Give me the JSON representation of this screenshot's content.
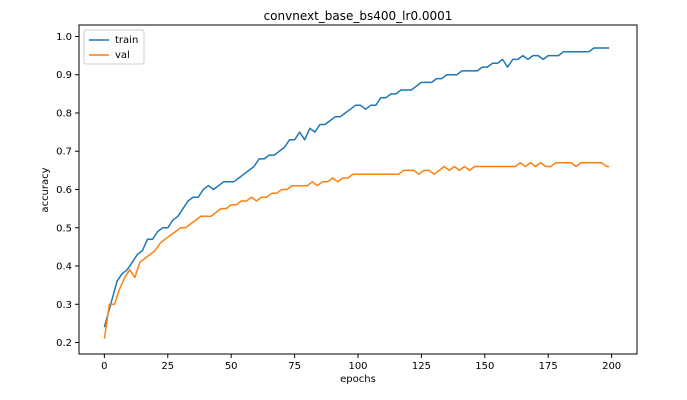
{
  "chart_data": {
    "type": "line",
    "title": "convnext_base_bs400_lr0.0001",
    "xlabel": "epochs",
    "ylabel": "accuracy",
    "xlim": [
      -10,
      210
    ],
    "ylim": [
      0.17,
      1.03
    ],
    "xticks": [
      0,
      25,
      50,
      75,
      100,
      125,
      150,
      175,
      200
    ],
    "yticks": [
      0.2,
      0.3,
      0.4,
      0.5,
      0.6,
      0.7,
      0.8,
      0.9,
      1.0
    ],
    "xtick_labels": [
      "0",
      "25",
      "50",
      "75",
      "100",
      "125",
      "150",
      "175",
      "200"
    ],
    "ytick_labels": [
      "0.2",
      "0.3",
      "0.4",
      "0.5",
      "0.6",
      "0.7",
      "0.8",
      "0.9",
      "1.0"
    ],
    "grid": false,
    "legend_position": "upper-left",
    "series": [
      {
        "name": "train",
        "color": "#1f77b4",
        "x": [
          0,
          5,
          7,
          9,
          11,
          13,
          15,
          17,
          19,
          21,
          23,
          25,
          27,
          29,
          31,
          33,
          35,
          37,
          39,
          41,
          43,
          45,
          47,
          49,
          51,
          53,
          55,
          57,
          59,
          61,
          63,
          65,
          67,
          69,
          71,
          73,
          75,
          77,
          79,
          81,
          83,
          85,
          87,
          89,
          91,
          93,
          95,
          97,
          99,
          101,
          103,
          105,
          107,
          109,
          111,
          113,
          115,
          117,
          119,
          121,
          123,
          125,
          127,
          129,
          131,
          133,
          135,
          137,
          139,
          141,
          143,
          145,
          147,
          149,
          151,
          153,
          155,
          157,
          159,
          161,
          163,
          165,
          167,
          169,
          171,
          173,
          175,
          177,
          179,
          181,
          183,
          185,
          187,
          189,
          191,
          193,
          195,
          197,
          199
        ],
        "values": [
          0.24,
          0.36,
          0.38,
          0.39,
          0.41,
          0.43,
          0.44,
          0.47,
          0.47,
          0.49,
          0.5,
          0.5,
          0.52,
          0.53,
          0.55,
          0.57,
          0.58,
          0.58,
          0.6,
          0.61,
          0.6,
          0.61,
          0.62,
          0.62,
          0.62,
          0.63,
          0.64,
          0.65,
          0.66,
          0.68,
          0.68,
          0.69,
          0.69,
          0.7,
          0.71,
          0.73,
          0.73,
          0.75,
          0.73,
          0.76,
          0.75,
          0.77,
          0.77,
          0.78,
          0.79,
          0.79,
          0.8,
          0.81,
          0.82,
          0.82,
          0.81,
          0.82,
          0.82,
          0.84,
          0.84,
          0.85,
          0.85,
          0.86,
          0.86,
          0.86,
          0.87,
          0.88,
          0.88,
          0.88,
          0.89,
          0.89,
          0.9,
          0.9,
          0.9,
          0.91,
          0.91,
          0.91,
          0.91,
          0.92,
          0.92,
          0.93,
          0.93,
          0.94,
          0.92,
          0.94,
          0.94,
          0.95,
          0.94,
          0.95,
          0.95,
          0.94,
          0.95,
          0.95,
          0.95,
          0.96,
          0.96,
          0.96,
          0.96,
          0.96,
          0.96,
          0.97,
          0.97,
          0.97,
          0.97
        ]
      },
      {
        "name": "val",
        "color": "#ff7f0e",
        "x": [
          0,
          2,
          4,
          6,
          8,
          10,
          12,
          14,
          16,
          18,
          20,
          22,
          24,
          26,
          28,
          30,
          32,
          34,
          36,
          38,
          40,
          42,
          44,
          46,
          48,
          50,
          52,
          54,
          56,
          58,
          60,
          62,
          64,
          66,
          68,
          70,
          72,
          74,
          76,
          78,
          80,
          82,
          84,
          86,
          88,
          90,
          92,
          94,
          96,
          98,
          100,
          102,
          104,
          106,
          108,
          110,
          112,
          114,
          116,
          118,
          120,
          122,
          124,
          126,
          128,
          130,
          132,
          134,
          136,
          138,
          140,
          142,
          144,
          146,
          148,
          150,
          152,
          154,
          156,
          158,
          160,
          162,
          164,
          166,
          168,
          170,
          172,
          174,
          176,
          178,
          180,
          182,
          184,
          186,
          188,
          190,
          192,
          194,
          196,
          198,
          199
        ],
        "values": [
          0.21,
          0.3,
          0.3,
          0.34,
          0.37,
          0.39,
          0.37,
          0.41,
          0.42,
          0.43,
          0.44,
          0.46,
          0.47,
          0.48,
          0.49,
          0.5,
          0.5,
          0.51,
          0.52,
          0.53,
          0.53,
          0.53,
          0.54,
          0.55,
          0.55,
          0.56,
          0.56,
          0.57,
          0.57,
          0.58,
          0.57,
          0.58,
          0.58,
          0.59,
          0.59,
          0.6,
          0.6,
          0.61,
          0.61,
          0.61,
          0.61,
          0.62,
          0.61,
          0.62,
          0.62,
          0.63,
          0.62,
          0.63,
          0.63,
          0.64,
          0.64,
          0.64,
          0.64,
          0.64,
          0.64,
          0.64,
          0.64,
          0.64,
          0.64,
          0.65,
          0.65,
          0.65,
          0.64,
          0.65,
          0.65,
          0.64,
          0.65,
          0.66,
          0.65,
          0.66,
          0.65,
          0.66,
          0.65,
          0.66,
          0.66,
          0.66,
          0.66,
          0.66,
          0.66,
          0.66,
          0.66,
          0.66,
          0.67,
          0.66,
          0.67,
          0.66,
          0.67,
          0.66,
          0.66,
          0.67,
          0.67,
          0.67,
          0.67,
          0.66,
          0.67,
          0.67,
          0.67,
          0.67,
          0.67,
          0.66,
          0.66
        ]
      }
    ]
  }
}
